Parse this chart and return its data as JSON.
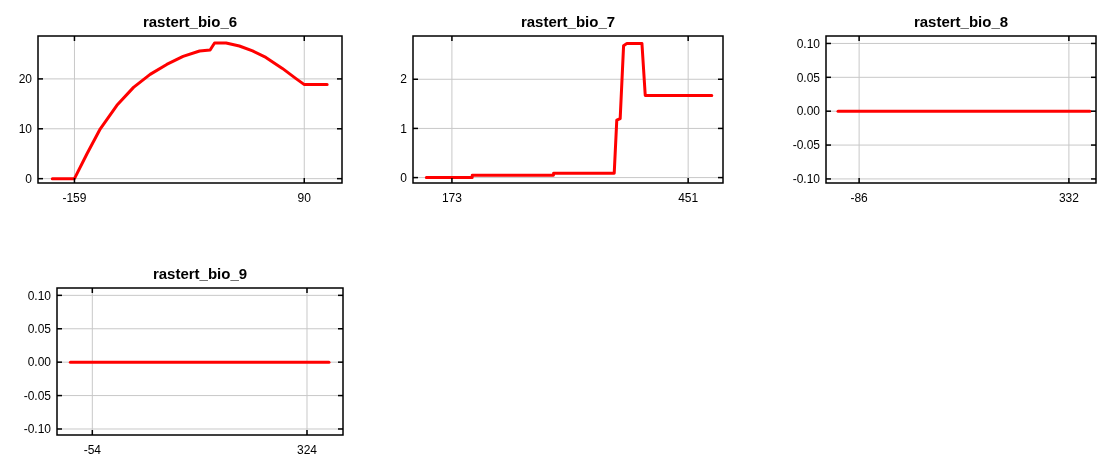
{
  "chart_data": [
    {
      "type": "line",
      "title": "rastert_bio_6",
      "xlim": [
        -198.5,
        130.9
      ],
      "xticks": [
        -159,
        90
      ],
      "ylim": [
        -0.87,
        28.6
      ],
      "yticks": [
        0,
        10,
        20
      ],
      "grid": true,
      "marker": "none",
      "line_style": "solid",
      "series": [
        {
          "color": "#ff0000",
          "x": [
            -183,
            -159,
            -145.4,
            -131,
            -113,
            -95,
            -77,
            -59,
            -41.3,
            -23.4,
            -12,
            -7.2,
            5.3,
            19.7,
            34,
            48.4,
            66.3,
            80.7,
            89.7,
            114.8
          ],
          "values": [
            0,
            0,
            5,
            10,
            14.7,
            18.3,
            20.9,
            22.9,
            24.5,
            25.6,
            25.8,
            27.2,
            27.2,
            26.6,
            25.6,
            24.3,
            22.1,
            20.1,
            18.9,
            18.9
          ]
        }
      ]
    },
    {
      "type": "line",
      "title": "rastert_bio_7",
      "xlim": [
        127.2,
        492
      ],
      "xticks": [
        173,
        451
      ],
      "ylim": [
        -0.11,
        2.88
      ],
      "yticks": [
        0,
        1,
        2
      ],
      "grid": true,
      "marker": "none",
      "line_style": "solid",
      "series": [
        {
          "color": "#ff0000",
          "x": [
            142.9,
            196.8,
            197,
            292.5,
            292.7,
            364,
            367,
            371,
            375,
            379,
            396.6,
            400.5,
            478.8
          ],
          "values": [
            0,
            0,
            0.05,
            0.05,
            0.09,
            0.09,
            1.17,
            1.2,
            2.68,
            2.73,
            2.73,
            1.67,
            1.67
          ]
        }
      ]
    },
    {
      "type": "line",
      "title": "rastert_bio_8",
      "xlim": [
        -152,
        386
      ],
      "xticks": [
        -86,
        332
      ],
      "ylim": [
        -0.106,
        0.111
      ],
      "yticks": [
        {
          "value": -0.1,
          "label": "-0.10"
        },
        -0.05,
        {
          "value": 0,
          "label": "0.00"
        },
        0.05,
        {
          "value": 0.1,
          "label": "0.10"
        }
      ],
      "grid": true,
      "marker": "none",
      "line_style": "solid",
      "series": [
        {
          "color": "#ff0000",
          "x": [
            -128,
            374
          ],
          "values": [
            0,
            0
          ]
        }
      ]
    },
    {
      "type": "line",
      "title": "rastert_bio_9",
      "xlim": [
        -116.2,
        387.4
      ],
      "xticks": [
        -54,
        324
      ],
      "ylim": [
        -0.109,
        0.111
      ],
      "yticks": [
        {
          "value": -0.1,
          "label": "-0.10"
        },
        -0.05,
        {
          "value": 0,
          "label": "0.00"
        },
        0.05,
        {
          "value": 0.1,
          "label": "0.10"
        }
      ],
      "grid": true,
      "marker": "none",
      "line_style": "solid",
      "series": [
        {
          "color": "#ff0000",
          "x": [
            -92.7,
            362.7
          ],
          "values": [
            0,
            0
          ]
        }
      ]
    }
  ]
}
